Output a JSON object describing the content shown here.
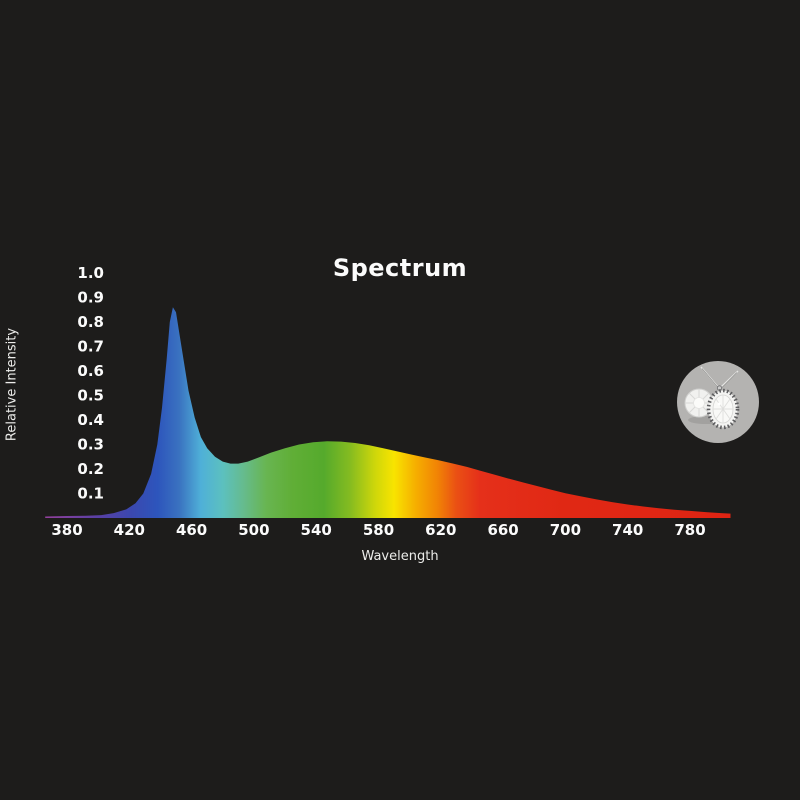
{
  "page": {
    "background_color": "#1d1c1b",
    "text_color": "#fbfbfb"
  },
  "chart_data": {
    "type": "area",
    "title": "Spectrum",
    "xlabel": "Wavelength",
    "ylabel": "Relative Intensity",
    "xlim": [
      366,
      806
    ],
    "ylim": [
      0,
      1.0
    ],
    "grid": false,
    "legend": "none",
    "x_ticks": [
      380,
      420,
      460,
      500,
      540,
      580,
      620,
      660,
      700,
      740,
      780
    ],
    "y_ticks": [
      0.1,
      0.2,
      0.3,
      0.4,
      0.5,
      0.6,
      0.7,
      0.8,
      0.9,
      1.0
    ],
    "description": "LED emission spectrum: narrow royal-blue peak ~448 nm (0.86), dip ~485 nm (0.22), broad phosphor hump ~545 nm (0.31), long red tail to 780 nm",
    "points": [
      [
        366,
        0.006
      ],
      [
        380,
        0.008
      ],
      [
        392,
        0.009
      ],
      [
        402,
        0.012
      ],
      [
        410,
        0.02
      ],
      [
        418,
        0.035
      ],
      [
        424,
        0.06
      ],
      [
        429,
        0.1
      ],
      [
        434,
        0.18
      ],
      [
        438,
        0.3
      ],
      [
        441,
        0.45
      ],
      [
        444,
        0.65
      ],
      [
        446,
        0.8
      ],
      [
        448,
        0.86
      ],
      [
        450,
        0.84
      ],
      [
        452,
        0.76
      ],
      [
        455,
        0.64
      ],
      [
        458,
        0.52
      ],
      [
        462,
        0.41
      ],
      [
        466,
        0.33
      ],
      [
        470,
        0.285
      ],
      [
        475,
        0.25
      ],
      [
        480,
        0.23
      ],
      [
        485,
        0.222
      ],
      [
        490,
        0.222
      ],
      [
        496,
        0.23
      ],
      [
        503,
        0.247
      ],
      [
        511,
        0.267
      ],
      [
        520,
        0.285
      ],
      [
        529,
        0.3
      ],
      [
        538,
        0.309
      ],
      [
        547,
        0.313
      ],
      [
        556,
        0.312
      ],
      [
        565,
        0.306
      ],
      [
        574,
        0.297
      ],
      [
        583,
        0.285
      ],
      [
        592,
        0.272
      ],
      [
        601,
        0.259
      ],
      [
        610,
        0.247
      ],
      [
        619,
        0.235
      ],
      [
        628,
        0.222
      ],
      [
        637,
        0.208
      ],
      [
        646,
        0.192
      ],
      [
        655,
        0.176
      ],
      [
        664,
        0.16
      ],
      [
        673,
        0.145
      ],
      [
        682,
        0.13
      ],
      [
        691,
        0.115
      ],
      [
        700,
        0.101
      ],
      [
        710,
        0.088
      ],
      [
        720,
        0.076
      ],
      [
        730,
        0.065
      ],
      [
        740,
        0.055
      ],
      [
        750,
        0.047
      ],
      [
        760,
        0.04
      ],
      [
        770,
        0.034
      ],
      [
        780,
        0.029
      ],
      [
        790,
        0.024
      ],
      [
        800,
        0.02
      ],
      [
        806,
        0.018
      ]
    ],
    "gradient_stops": [
      {
        "nm": 366,
        "color": "#93409c"
      },
      {
        "nm": 400,
        "color": "#5940a6"
      },
      {
        "nm": 420,
        "color": "#3c47ae"
      },
      {
        "nm": 438,
        "color": "#2d55bc"
      },
      {
        "nm": 452,
        "color": "#3a72c0"
      },
      {
        "nm": 466,
        "color": "#4fb0d8"
      },
      {
        "nm": 480,
        "color": "#5cc0bf"
      },
      {
        "nm": 494,
        "color": "#66bb8b"
      },
      {
        "nm": 508,
        "color": "#68b551"
      },
      {
        "nm": 525,
        "color": "#60ae36"
      },
      {
        "nm": 545,
        "color": "#55aa2c"
      },
      {
        "nm": 562,
        "color": "#86bc20"
      },
      {
        "nm": 578,
        "color": "#cfd70a"
      },
      {
        "nm": 590,
        "color": "#f8e400"
      },
      {
        "nm": 604,
        "color": "#f6ae00"
      },
      {
        "nm": 618,
        "color": "#f18305"
      },
      {
        "nm": 630,
        "color": "#ea5014"
      },
      {
        "nm": 645,
        "color": "#e5301a"
      },
      {
        "nm": 700,
        "color": "#e02814"
      },
      {
        "nm": 806,
        "color": "#df2413"
      }
    ]
  },
  "badge": {
    "icon": "jewelry-pendant-photo",
    "shape": "circle",
    "background_color": "#b4b3b1",
    "gem_color": "#f4f4f2",
    "halo_color": "#5e5e60",
    "chain_color": "#e6e6e4"
  }
}
